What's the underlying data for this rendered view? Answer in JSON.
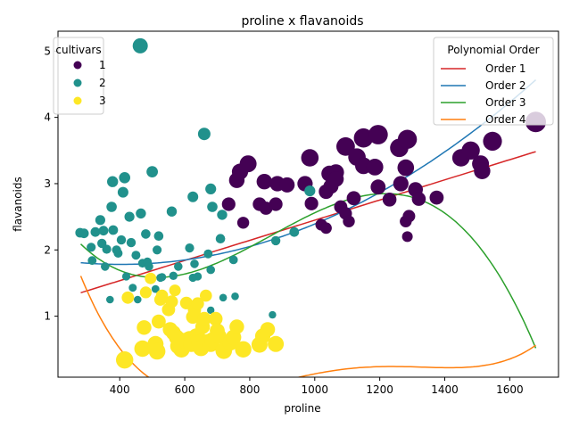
{
  "chart_data": {
    "type": "scatter",
    "title": "proline x flavanoids",
    "xlabel": "proline",
    "ylabel": "flavanoids",
    "xlim": [
      210,
      1750
    ],
    "ylim": [
      0.08,
      5.3
    ],
    "xticks": [
      400,
      600,
      800,
      1000,
      1200,
      1400,
      1600
    ],
    "yticks": [
      1,
      2,
      3,
      4,
      5
    ],
    "grid": false,
    "legends": {
      "cultivars": {
        "title": "cultivars",
        "placement": "upper-left",
        "entries": [
          {
            "label": "1",
            "color": "#440154"
          },
          {
            "label": "2",
            "color": "#21918c"
          },
          {
            "label": "3",
            "color": "#fde725"
          }
        ]
      },
      "polynomial": {
        "title": "Polynomial Order",
        "placement": "upper-right",
        "entries": [
          {
            "label": "Order 1",
            "color": "#d62728"
          },
          {
            "label": "Order 2",
            "color": "#1f77b4"
          },
          {
            "label": "Order 3",
            "color": "#2ca02c"
          },
          {
            "label": "Order 4",
            "color": "#ff7f0e"
          }
        ]
      }
    },
    "series": [
      {
        "name": "1",
        "color": "#440154",
        "points": [
          [
            735,
            2.69
          ],
          [
            760,
            3.05
          ],
          [
            770,
            3.18
          ],
          [
            780,
            2.41
          ],
          [
            795,
            3.3
          ],
          [
            830,
            2.69
          ],
          [
            845,
            3.03
          ],
          [
            850,
            2.63
          ],
          [
            880,
            2.69
          ],
          [
            885,
            3.0
          ],
          [
            915,
            2.98
          ],
          [
            970,
            3.0
          ],
          [
            985,
            3.39
          ],
          [
            990,
            2.7
          ],
          [
            1020,
            2.38
          ],
          [
            1035,
            2.33
          ],
          [
            1035,
            2.88
          ],
          [
            1045,
            3.15
          ],
          [
            1050,
            2.96
          ],
          [
            1060,
            3.1
          ],
          [
            1065,
            3.17
          ],
          [
            1080,
            2.65
          ],
          [
            1095,
            3.56
          ],
          [
            1095,
            2.55
          ],
          [
            1105,
            2.43
          ],
          [
            1120,
            2.78
          ],
          [
            1130,
            3.4
          ],
          [
            1150,
            3.27
          ],
          [
            1150,
            3.69
          ],
          [
            1185,
            3.25
          ],
          [
            1195,
            3.74
          ],
          [
            1195,
            2.95
          ],
          [
            1230,
            2.76
          ],
          [
            1260,
            3.54
          ],
          [
            1265,
            3.0
          ],
          [
            1280,
            3.24
          ],
          [
            1280,
            2.43
          ],
          [
            1285,
            2.2
          ],
          [
            1285,
            3.67
          ],
          [
            1290,
            2.51
          ],
          [
            1310,
            2.91
          ],
          [
            1320,
            2.77
          ],
          [
            1375,
            2.79
          ],
          [
            1450,
            3.39
          ],
          [
            1480,
            3.5
          ],
          [
            1510,
            3.3
          ],
          [
            1515,
            3.19
          ],
          [
            1547,
            3.64
          ],
          [
            1680,
            3.93
          ],
          [
            1065,
            3.07
          ]
        ]
      },
      {
        "name": "2",
        "color": "#21918c",
        "points": [
          [
            278,
            2.26
          ],
          [
            290,
            2.25
          ],
          [
            312,
            2.04
          ],
          [
            315,
            1.84
          ],
          [
            325,
            2.27
          ],
          [
            340,
            2.45
          ],
          [
            345,
            2.1
          ],
          [
            350,
            2.29
          ],
          [
            355,
            1.75
          ],
          [
            360,
            2.01
          ],
          [
            370,
            1.25
          ],
          [
            375,
            2.65
          ],
          [
            378,
            3.03
          ],
          [
            380,
            2.3
          ],
          [
            390,
            2.0
          ],
          [
            395,
            1.95
          ],
          [
            405,
            2.15
          ],
          [
            410,
            2.87
          ],
          [
            415,
            3.09
          ],
          [
            420,
            1.6
          ],
          [
            430,
            2.5
          ],
          [
            435,
            2.11
          ],
          [
            440,
            1.43
          ],
          [
            450,
            1.92
          ],
          [
            455,
            1.25
          ],
          [
            465,
            2.55
          ],
          [
            470,
            1.8
          ],
          [
            480,
            2.24
          ],
          [
            485,
            1.82
          ],
          [
            490,
            1.75
          ],
          [
            500,
            3.18
          ],
          [
            510,
            1.41
          ],
          [
            515,
            2.0
          ],
          [
            520,
            2.21
          ],
          [
            525,
            1.58
          ],
          [
            530,
            1.59
          ],
          [
            560,
            2.58
          ],
          [
            565,
            1.61
          ],
          [
            580,
            1.75
          ],
          [
            615,
            2.03
          ],
          [
            625,
            2.8
          ],
          [
            630,
            1.79
          ],
          [
            640,
            1.6
          ],
          [
            660,
            3.75
          ],
          [
            672,
            1.94
          ],
          [
            680,
            2.92
          ],
          [
            680,
            1.7
          ],
          [
            685,
            2.65
          ],
          [
            710,
            2.17
          ],
          [
            715,
            2.53
          ],
          [
            718,
            1.28
          ],
          [
            750,
            1.85
          ],
          [
            755,
            1.3
          ],
          [
            870,
            1.02
          ],
          [
            880,
            2.14
          ],
          [
            937,
            2.27
          ],
          [
            985,
            2.89
          ],
          [
            463,
            5.08
          ],
          [
            680,
            1.09
          ],
          [
            625,
            1.58
          ]
        ]
      },
      {
        "name": "3",
        "color": "#fde725",
        "points": [
          [
            415,
            0.34
          ],
          [
            425,
            1.28
          ],
          [
            470,
            0.51
          ],
          [
            475,
            0.83
          ],
          [
            480,
            1.36
          ],
          [
            495,
            1.57
          ],
          [
            510,
            0.58
          ],
          [
            515,
            0.47
          ],
          [
            520,
            0.92
          ],
          [
            525,
            1.25
          ],
          [
            530,
            1.31
          ],
          [
            550,
            1.1
          ],
          [
            555,
            0.8
          ],
          [
            560,
            1.22
          ],
          [
            565,
            0.75
          ],
          [
            570,
            1.39
          ],
          [
            580,
            0.55
          ],
          [
            590,
            0.5
          ],
          [
            600,
            0.63
          ],
          [
            605,
            1.2
          ],
          [
            615,
            0.66
          ],
          [
            620,
            0.58
          ],
          [
            625,
            0.99
          ],
          [
            630,
            1.09
          ],
          [
            635,
            0.7
          ],
          [
            640,
            0.69
          ],
          [
            645,
            0.6
          ],
          [
            650,
            0.52
          ],
          [
            655,
            0.84
          ],
          [
            660,
            0.96
          ],
          [
            665,
            1.31
          ],
          [
            670,
            0.61
          ],
          [
            680,
            0.58
          ],
          [
            685,
            0.64
          ],
          [
            695,
            0.96
          ],
          [
            700,
            0.78
          ],
          [
            705,
            0.7
          ],
          [
            720,
            0.48
          ],
          [
            740,
            0.6
          ],
          [
            750,
            0.68
          ],
          [
            760,
            0.84
          ],
          [
            780,
            0.5
          ],
          [
            830,
            0.57
          ],
          [
            840,
            0.7
          ],
          [
            855,
            0.8
          ],
          [
            880,
            0.58
          ],
          [
            640,
            1.19
          ],
          [
            575,
            0.68
          ]
        ]
      }
    ],
    "fits": [
      {
        "name": "Order 1",
        "color": "#d62728",
        "coeffs": [
          0.9278,
          0.001521
        ]
      },
      {
        "name": "Order 2",
        "color": "#1f77b4",
        "coeffs": [
          2.0575,
          -0.0013715,
          1.705e-06
        ]
      },
      {
        "name": "Order 3",
        "color": "#2ca02c",
        "coeffs": [
          4.56,
          -0.0135,
          1.87e-05,
          -7.2e-09
        ]
      },
      {
        "name": "Order 4",
        "color": "#ff7f0e",
        "coeffs": [
          7.69,
          -0.0336,
          5.08e-05,
          -3.2e-08,
          7.24e-12
        ]
      }
    ],
    "fit_xrange": [
      280,
      1680
    ]
  }
}
